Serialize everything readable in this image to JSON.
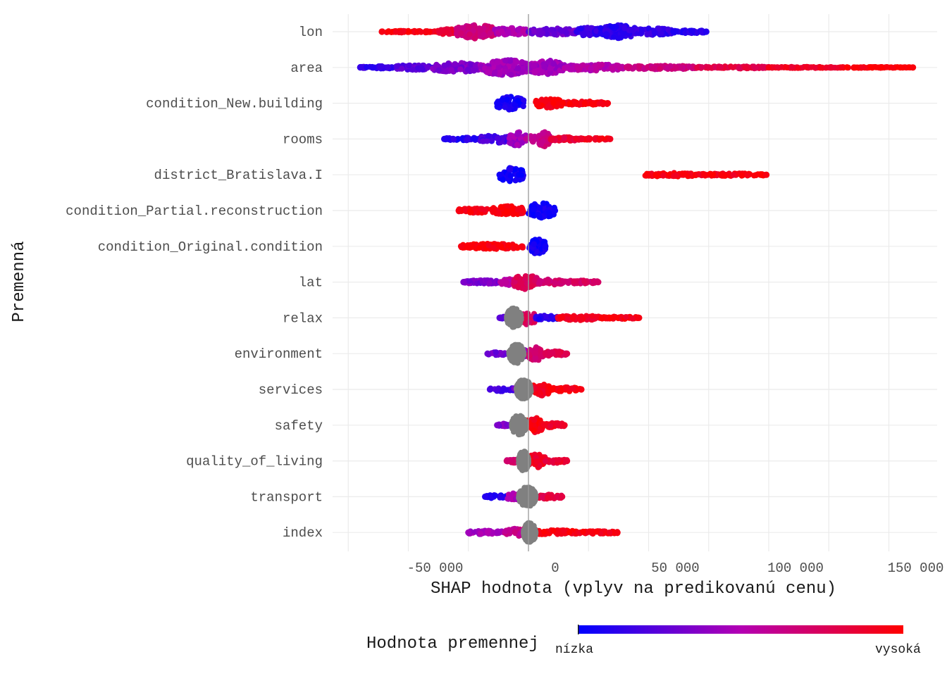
{
  "chart_data": {
    "type": "beeswarm",
    "title": "",
    "xlabel": "SHAP hodnota (vplyv na predikovanú cenu)",
    "ylabel": "Premenná",
    "xlim": [
      -80000,
      165000
    ],
    "x_ticks": [
      -50000,
      0,
      50000,
      100000,
      150000
    ],
    "x_tick_labels": [
      "-50 000",
      "0",
      "50 000",
      "100 000",
      "150 000"
    ],
    "grid": true,
    "zero_line": true,
    "legend": {
      "title": "Hodnota premennej",
      "position": "bottom",
      "low_label": "nízka",
      "high_label": "vysoká",
      "low_color": "#0000ff",
      "high_color": "#ff0000",
      "na_color": "#808080"
    },
    "variables": [
      {
        "name": "lon",
        "min": -61000,
        "max": 74000,
        "segments": [
          [
            -61000,
            -38000,
            0.95,
            0.06
          ],
          [
            -38000,
            -30000,
            0.85,
            0.18
          ],
          [
            -30000,
            -14000,
            0.65,
            0.45
          ],
          [
            -14000,
            0,
            0.5,
            0.25
          ],
          [
            0,
            20000,
            0.3,
            0.22
          ],
          [
            20000,
            30000,
            0.15,
            0.28
          ],
          [
            30000,
            45000,
            0.12,
            0.42
          ],
          [
            45000,
            60000,
            0.15,
            0.22
          ],
          [
            60000,
            74000,
            0.1,
            0.1
          ]
        ]
      },
      {
        "name": "area",
        "min": -70000,
        "max": 160000,
        "segments": [
          [
            -70000,
            -55000,
            0.15,
            0.08
          ],
          [
            -55000,
            -40000,
            0.25,
            0.16
          ],
          [
            -40000,
            -20000,
            0.35,
            0.3
          ],
          [
            -20000,
            0,
            0.45,
            0.5
          ],
          [
            0,
            15000,
            0.45,
            0.45
          ],
          [
            15000,
            40000,
            0.52,
            0.2
          ],
          [
            40000,
            70000,
            0.65,
            0.12
          ],
          [
            70000,
            100000,
            0.8,
            0.07
          ],
          [
            100000,
            130000,
            0.9,
            0.04
          ],
          [
            130000,
            160000,
            0.97,
            0.03
          ]
        ]
      },
      {
        "name": "condition_New.building",
        "min": -13000,
        "max": 33000,
        "segments": [
          [
            -13000,
            -2000,
            0.05,
            0.45
          ],
          [
            3000,
            14000,
            0.95,
            0.3
          ],
          [
            14000,
            33000,
            0.95,
            0.12
          ]
        ]
      },
      {
        "name": "rooms",
        "min": -35000,
        "max": 34000,
        "segments": [
          [
            -35000,
            -20000,
            0.1,
            0.1
          ],
          [
            -20000,
            -8000,
            0.2,
            0.25
          ],
          [
            -8000,
            -1000,
            0.45,
            0.45
          ],
          [
            -1000,
            4000,
            0.6,
            0.2
          ],
          [
            4000,
            9000,
            0.65,
            0.5
          ],
          [
            9000,
            22000,
            0.85,
            0.12
          ],
          [
            22000,
            34000,
            0.92,
            0.06
          ]
        ]
      },
      {
        "name": "district_Bratislava.I",
        "min": -12000,
        "max": 99000,
        "segments": [
          [
            -12000,
            -2000,
            0.05,
            0.45
          ],
          [
            48000,
            70000,
            0.95,
            0.12
          ],
          [
            70000,
            99000,
            0.95,
            0.09
          ]
        ]
      },
      {
        "name": "condition_Partial.reconstruction",
        "min": -29000,
        "max": 11000,
        "segments": [
          [
            -29000,
            -15000,
            0.95,
            0.15
          ],
          [
            -15000,
            -2000,
            0.95,
            0.3
          ],
          [
            0,
            11000,
            0.05,
            0.48
          ]
        ]
      },
      {
        "name": "condition_Original.condition",
        "min": -28000,
        "max": 7000,
        "segments": [
          [
            -28000,
            -2000,
            0.95,
            0.17
          ],
          [
            0,
            7000,
            0.05,
            0.48
          ]
        ]
      },
      {
        "name": "lat",
        "min": -27000,
        "max": 29000,
        "segments": [
          [
            -27000,
            -12000,
            0.35,
            0.12
          ],
          [
            -12000,
            -6000,
            0.55,
            0.22
          ],
          [
            -6000,
            4000,
            0.75,
            0.46
          ],
          [
            4000,
            14000,
            0.7,
            0.18
          ],
          [
            14000,
            29000,
            0.72,
            0.1
          ]
        ]
      },
      {
        "name": "relax",
        "min": -12000,
        "max": 46000,
        "na_range": [
          -9000,
          -3000
        ],
        "segments": [
          [
            -12000,
            -3000,
            0.25,
            0.1
          ],
          [
            -3000,
            3000,
            0.75,
            0.44
          ],
          [
            3000,
            12000,
            0.1,
            0.15
          ],
          [
            12000,
            30000,
            0.9,
            0.15
          ],
          [
            30000,
            46000,
            0.95,
            0.09
          ]
        ]
      },
      {
        "name": "environment",
        "min": -17000,
        "max": 16000,
        "na_range": [
          -8000,
          -2000
        ],
        "segments": [
          [
            -17000,
            -7000,
            0.3,
            0.1
          ],
          [
            -7000,
            0,
            0.4,
            0.3
          ],
          [
            0,
            6000,
            0.72,
            0.45
          ],
          [
            6000,
            16000,
            0.78,
            0.16
          ]
        ]
      },
      {
        "name": "services",
        "min": -16000,
        "max": 22000,
        "na_range": [
          -5000,
          1000
        ],
        "segments": [
          [
            -16000,
            -6000,
            0.2,
            0.12
          ],
          [
            -6000,
            0,
            0.4,
            0.3
          ],
          [
            1000,
            9000,
            0.92,
            0.42
          ],
          [
            9000,
            22000,
            0.95,
            0.14
          ]
        ]
      },
      {
        "name": "safety",
        "min": -13000,
        "max": 15000,
        "na_range": [
          -7000,
          -1000
        ],
        "segments": [
          [
            -13000,
            -7000,
            0.35,
            0.1
          ],
          [
            -1000,
            6000,
            0.95,
            0.5
          ],
          [
            6000,
            15000,
            0.9,
            0.15
          ]
        ]
      },
      {
        "name": "quality_of_living",
        "min": -9000,
        "max": 16000,
        "na_range": [
          -4000,
          0
        ],
        "segments": [
          [
            -9000,
            -3000,
            0.7,
            0.12
          ],
          [
            0,
            7000,
            0.9,
            0.48
          ],
          [
            7000,
            16000,
            0.85,
            0.14
          ]
        ]
      },
      {
        "name": "transport",
        "min": -18000,
        "max": 14000,
        "na_range": [
          -4000,
          3000
        ],
        "segments": [
          [
            -18000,
            -9000,
            0.1,
            0.12
          ],
          [
            -9000,
            -3000,
            0.5,
            0.22
          ],
          [
            -3000,
            3000,
            0.62,
            0.48
          ],
          [
            3000,
            14000,
            0.82,
            0.14
          ]
        ]
      },
      {
        "name": "index",
        "min": -25000,
        "max": 37000,
        "na_range": [
          -2000,
          3000
        ],
        "segments": [
          [
            -25000,
            -10000,
            0.45,
            0.12
          ],
          [
            -10000,
            -2000,
            0.6,
            0.25
          ],
          [
            -2000,
            3000,
            0.7,
            0.48
          ],
          [
            3000,
            20000,
            0.95,
            0.15
          ],
          [
            20000,
            37000,
            0.95,
            0.09
          ]
        ]
      }
    ]
  }
}
